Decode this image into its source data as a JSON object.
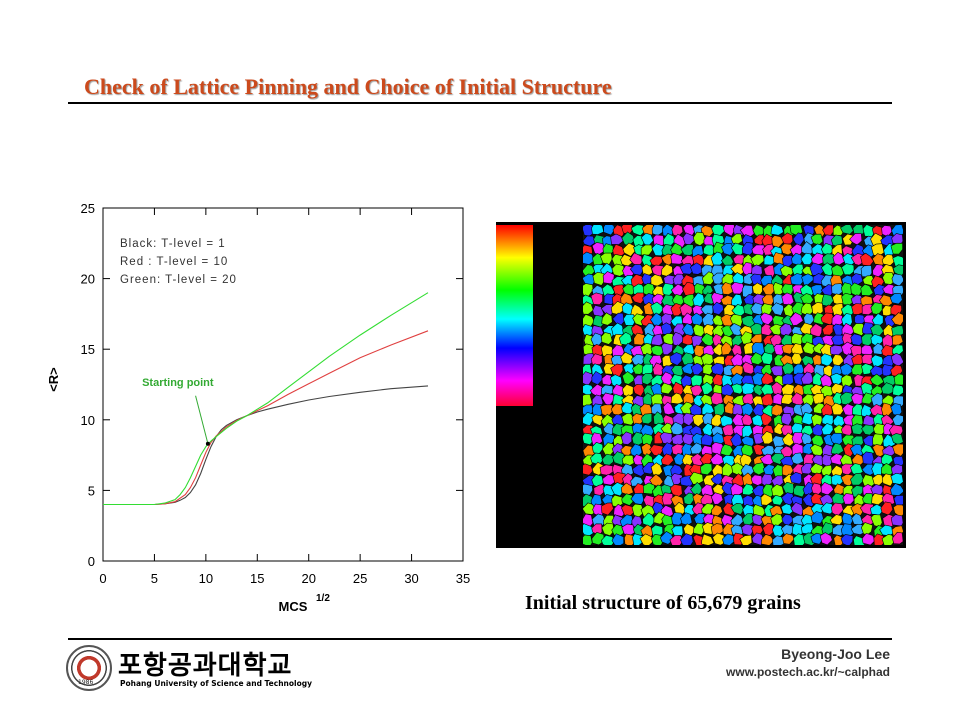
{
  "slide": {
    "title": "Check of Lattice Pinning and Choice of Initial Structure",
    "caption": "Initial structure of 65,679 grains"
  },
  "footer": {
    "author": "Byeong-Joo Lee",
    "url": "www.postech.ac.kr/~calphad",
    "logo_korean": "포항공과대학교",
    "logo_english": "Pohang University of Science and Technology",
    "logo_year": "1986"
  },
  "chart_data": {
    "type": "line",
    "title": "",
    "xlabel": "MCS",
    "xlabel_superscript": "1/2",
    "ylabel": "<R>",
    "xlim": [
      0,
      35
    ],
    "ylim": [
      0,
      25
    ],
    "xticks": [
      0,
      5,
      10,
      15,
      20,
      25,
      30,
      35
    ],
    "yticks": [
      0,
      5,
      10,
      15,
      20,
      25
    ],
    "grid": false,
    "legend_position": "top-left",
    "legend_entries": [
      "Black: T-level = 1",
      "Red   : T-level = 10",
      "Green: T-level = 20"
    ],
    "annotation": {
      "text": "Starting point",
      "x": 10.2,
      "y": 8.3,
      "color": "#33aa33"
    },
    "series": [
      {
        "color": "#444444",
        "x": [
          0,
          5,
          6,
          7,
          7.5,
          8,
          8.5,
          9,
          9.5,
          10,
          10.5,
          11,
          11.5,
          12,
          13,
          14,
          15,
          16,
          18,
          20,
          22,
          25,
          28,
          31.6
        ],
        "y": [
          4.0,
          4.0,
          4.05,
          4.15,
          4.3,
          4.5,
          4.85,
          5.4,
          6.2,
          7.2,
          8.1,
          8.8,
          9.3,
          9.6,
          10.0,
          10.3,
          10.55,
          10.75,
          11.1,
          11.4,
          11.65,
          11.95,
          12.2,
          12.4
        ]
      },
      {
        "color": "#e04040",
        "x": [
          0,
          5,
          6,
          7,
          8,
          8.5,
          9,
          9.5,
          10,
          10.5,
          11,
          12,
          13,
          14,
          15,
          16,
          18,
          20,
          22,
          25,
          28,
          31.6
        ],
        "y": [
          4.0,
          4.0,
          4.05,
          4.2,
          4.7,
          5.2,
          5.9,
          6.8,
          7.7,
          8.4,
          8.85,
          9.5,
          9.95,
          10.3,
          10.65,
          11.0,
          11.8,
          12.55,
          13.3,
          14.4,
          15.3,
          16.3
        ]
      },
      {
        "color": "#33dd33",
        "x": [
          0,
          5,
          6,
          7,
          7.5,
          8,
          8.5,
          9,
          9.5,
          10,
          10.5,
          11,
          12,
          13,
          14,
          15,
          16,
          18,
          20,
          22,
          25,
          28,
          31.6
        ],
        "y": [
          4.0,
          4.0,
          4.1,
          4.35,
          4.7,
          5.2,
          5.9,
          6.7,
          7.5,
          8.1,
          8.5,
          8.8,
          9.4,
          9.9,
          10.3,
          10.75,
          11.2,
          12.3,
          13.4,
          14.5,
          16.0,
          17.4,
          19.0
        ]
      }
    ]
  },
  "micrograph": {
    "colorbar_colors": [
      "#ff0000",
      "#ffff00",
      "#00ff00",
      "#00ffff",
      "#0000ff",
      "#ff00ff",
      "#ff0033"
    ],
    "grain_palette": [
      "#ff2020",
      "#ff8800",
      "#ffdd00",
      "#88ff00",
      "#22ee22",
      "#00ff99",
      "#00e5ff",
      "#0088ff",
      "#2233ff",
      "#8833ff",
      "#ee22ff",
      "#ff22aa",
      "#00cc66",
      "#33aaff"
    ]
  }
}
